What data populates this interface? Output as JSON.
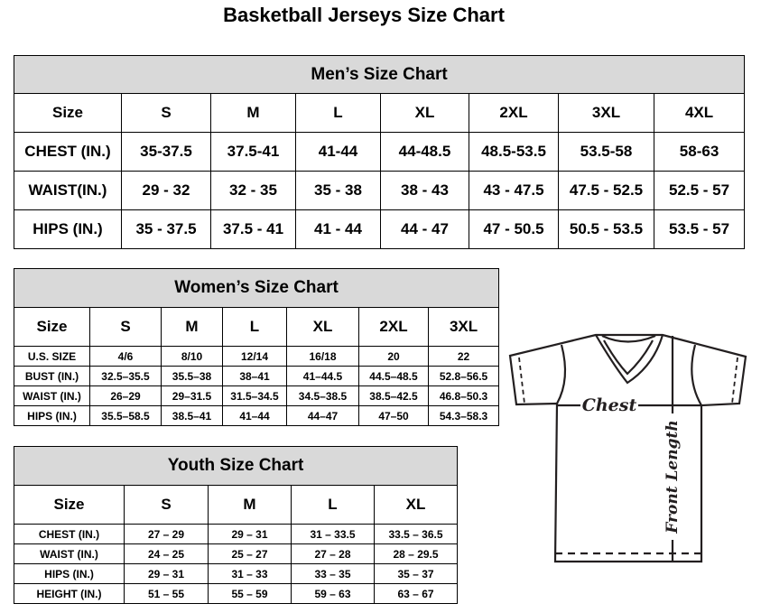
{
  "title": "Basketball Jerseys Size Chart",
  "men": {
    "title": "Men’s Size Chart",
    "header": [
      "Size",
      "S",
      "M",
      "L",
      "XL",
      "2XL",
      "3XL",
      "4XL"
    ],
    "rows": [
      [
        "CHEST (IN.)",
        "35-37.5",
        "37.5-41",
        "41-44",
        "44-48.5",
        "48.5-53.5",
        "53.5-58",
        "58-63"
      ],
      [
        "WAIST(IN.)",
        "29 - 32",
        "32 - 35",
        "35 - 38",
        "38 - 43",
        "43 - 47.5",
        "47.5 - 52.5",
        "52.5 - 57"
      ],
      [
        "HIPS (IN.)",
        "35 - 37.5",
        "37.5 - 41",
        "41 - 44",
        "44 - 47",
        "47 - 50.5",
        "50.5 - 53.5",
        "53.5 - 57"
      ]
    ]
  },
  "women": {
    "title": "Women’s Size Chart",
    "header": [
      "Size",
      "S",
      "M",
      "L",
      "XL",
      "2XL",
      "3XL"
    ],
    "rows": [
      [
        "U.S.  SIZE",
        "4/6",
        "8/10",
        "12/14",
        "16/18",
        "20",
        "22"
      ],
      [
        "BUST  (IN.)",
        "32.5–35.5",
        "35.5–38",
        "38–41",
        "41–44.5",
        "44.5–48.5",
        "52.8–56.5"
      ],
      [
        "WAIST  (IN.)",
        "26–29",
        "29–31.5",
        "31.5–34.5",
        "34.5–38.5",
        "38.5–42.5",
        "46.8–50.3"
      ],
      [
        "HIPS  (IN.)",
        "35.5–58.5",
        "38.5–41",
        "41–44",
        "44–47",
        "47–50",
        "54.3–58.3"
      ]
    ]
  },
  "youth": {
    "title": "Youth Size Chart",
    "header": [
      "Size",
      "S",
      "M",
      "L",
      "XL"
    ],
    "rows": [
      [
        "CHEST  (IN.)",
        "27  –  29",
        "29  –  31",
        "31  –  33.5",
        "33.5  –  36.5"
      ],
      [
        "WAIST  (IN.)",
        "24  –  25",
        "25  –  27",
        "27  –  28",
        "28  –  29.5"
      ],
      [
        "HIPS  (IN.)",
        "29  –  31",
        "31  –  33",
        "33  –  35",
        "35  –  37"
      ],
      [
        "HEIGHT  (IN.)",
        "51  –  55",
        "55  –  59",
        "59  –  63",
        "63  –  67"
      ]
    ]
  },
  "diagram": {
    "chest_label": "Chest",
    "length_label": "Front Length"
  }
}
